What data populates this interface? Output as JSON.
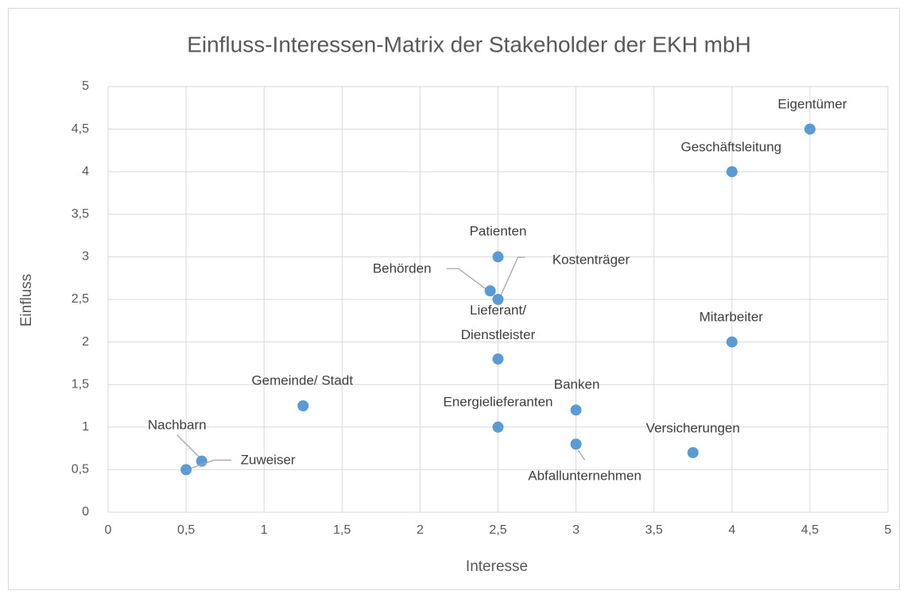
{
  "chart_data": {
    "type": "scatter",
    "title": "Einfluss-Interessen-Matrix der Stakeholder der EKH mbH",
    "xlabel": "Interesse",
    "ylabel": "Einfluss",
    "color": "#5b9bd5",
    "grid": true,
    "xlim": [
      0,
      5
    ],
    "ylim": [
      0,
      5
    ],
    "xticks": [
      0,
      {
        "value": 0.5,
        "label": "0,5"
      },
      1,
      {
        "value": 1.5,
        "label": "1,5"
      },
      2,
      {
        "value": 2.5,
        "label": "2,5"
      },
      3,
      {
        "value": 3.5,
        "label": "3,5"
      },
      4,
      {
        "value": 4.5,
        "label": "4,5"
      },
      5
    ],
    "yticks": [
      0,
      {
        "value": 0.5,
        "label": "0,5"
      },
      1,
      {
        "value": 1.5,
        "label": "1,5"
      },
      2,
      {
        "value": 2.5,
        "label": "2,5"
      },
      3,
      {
        "value": 3.5,
        "label": "3,5"
      },
      4,
      {
        "value": 4.5,
        "label": "4,5"
      },
      5
    ],
    "labels": [
      "Eigentümer",
      "Geschäftsleitung",
      "Patienten",
      "Behörden",
      "Kostenträger",
      "Lieferant/\nDienstleister",
      "Mitarbeiter",
      "Gemeinde/ Stadt",
      "Banken",
      "Energielieferanten",
      "Abfallunternehmen",
      "Versicherungen",
      "Nachbarn",
      "Zuweiser"
    ],
    "x": [
      4.5,
      4,
      2.5,
      2.45,
      2.5,
      2.5,
      4,
      1.25,
      3,
      2.5,
      3,
      3.75,
      0.6,
      0.5
    ],
    "values": [
      4.5,
      4,
      3,
      2.6,
      2.5,
      1.8,
      2,
      1.25,
      1.2,
      1,
      0.8,
      0.7,
      0.6,
      0.5
    ]
  }
}
